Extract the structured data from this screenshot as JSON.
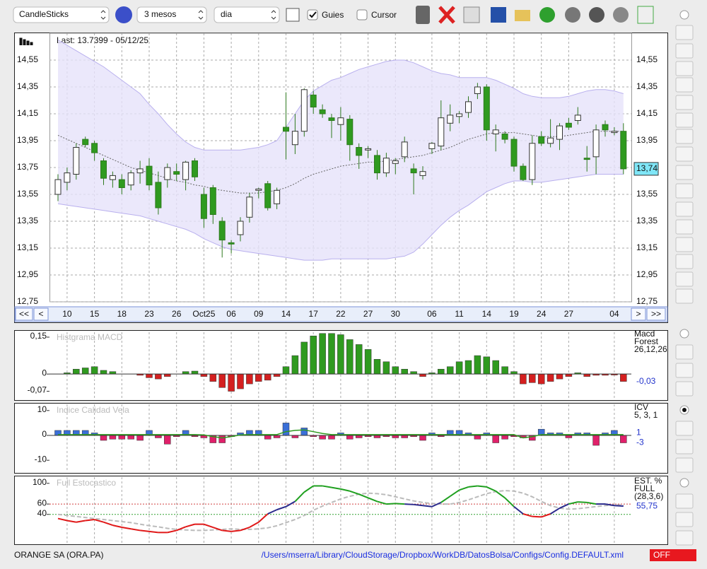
{
  "toolbar": {
    "chart_type": "CandleSticks",
    "period": "3 mesos",
    "interval": "dia",
    "guides": "Guies",
    "cursor": "Cursor"
  },
  "main_chart": {
    "type": "candlestick",
    "title": "Last: 13.7399 - 05/12/25",
    "categories": [
      null,
      "10",
      null,
      null,
      "15",
      null,
      null,
      "18",
      null,
      null,
      "23",
      null,
      null,
      "26",
      null,
      null,
      "Oct25",
      null,
      null,
      "06",
      null,
      null,
      "09",
      null,
      null,
      "14",
      null,
      null,
      "17",
      null,
      null,
      "22",
      null,
      null,
      "27",
      null,
      null,
      "30",
      null,
      null,
      null,
      "06",
      null,
      null,
      "11",
      null,
      null,
      "14",
      null,
      null,
      "19",
      null,
      null,
      "24",
      null,
      null,
      "27",
      null,
      null,
      null,
      null,
      "04",
      null
    ],
    "ohlc": [
      [
        13.55,
        13.7,
        13.5,
        13.66
      ],
      [
        13.64,
        13.75,
        13.58,
        13.71
      ],
      [
        13.7,
        13.93,
        13.66,
        13.9
      ],
      [
        13.96,
        13.98,
        13.9,
        13.92
      ],
      [
        13.93,
        13.95,
        13.8,
        13.86
      ],
      [
        13.8,
        13.82,
        13.62,
        13.67
      ],
      [
        13.66,
        13.72,
        13.6,
        13.69
      ],
      [
        13.66,
        13.7,
        13.55,
        13.6
      ],
      [
        13.62,
        13.73,
        13.58,
        13.71
      ],
      [
        13.71,
        13.8,
        13.63,
        13.74
      ],
      [
        13.76,
        13.82,
        13.58,
        13.62
      ],
      [
        13.64,
        13.72,
        13.4,
        13.45
      ],
      [
        13.66,
        13.78,
        13.6,
        13.75
      ],
      [
        13.72,
        13.78,
        13.65,
        13.7
      ],
      [
        13.66,
        13.8,
        13.58,
        13.79
      ],
      [
        13.8,
        13.82,
        13.65,
        13.68
      ],
      [
        13.55,
        13.6,
        13.3,
        13.37
      ],
      [
        13.6,
        13.62,
        13.33,
        13.4
      ],
      [
        13.35,
        13.38,
        13.08,
        13.21
      ],
      [
        13.19,
        13.21,
        13.11,
        13.18
      ],
      [
        13.25,
        13.38,
        13.2,
        13.35
      ],
      [
        13.38,
        13.56,
        13.34,
        13.53
      ],
      [
        13.58,
        13.6,
        13.52,
        13.59
      ],
      [
        13.63,
        13.65,
        13.43,
        13.45
      ],
      [
        13.48,
        13.6,
        13.44,
        13.58
      ],
      [
        14.05,
        14.31,
        13.81,
        14.02
      ],
      [
        13.92,
        14.15,
        13.85,
        14.02
      ],
      [
        14.02,
        14.34,
        13.98,
        14.33
      ],
      [
        14.29,
        14.32,
        14.15,
        14.2
      ],
      [
        14.18,
        14.22,
        14.12,
        14.15
      ],
      [
        14.12,
        14.15,
        13.97,
        14.1
      ],
      [
        14.07,
        14.2,
        13.95,
        14.12
      ],
      [
        14.11,
        14.14,
        13.8,
        13.92
      ],
      [
        13.9,
        13.93,
        13.74,
        13.84
      ],
      [
        13.88,
        13.91,
        13.82,
        13.89
      ],
      [
        13.84,
        13.88,
        13.66,
        13.71
      ],
      [
        13.71,
        13.86,
        13.68,
        13.82
      ],
      [
        13.78,
        13.82,
        13.7,
        13.8
      ],
      [
        13.83,
        13.98,
        13.79,
        13.94
      ],
      [
        13.74,
        13.78,
        13.55,
        13.71
      ],
      [
        13.69,
        13.76,
        13.66,
        13.72
      ],
      [
        13.89,
        13.94,
        13.85,
        13.93
      ],
      [
        13.91,
        14.25,
        13.88,
        14.12
      ],
      [
        14.08,
        14.22,
        14.02,
        14.14
      ],
      [
        14.13,
        14.17,
        14.08,
        14.15
      ],
      [
        14.16,
        14.28,
        14.12,
        14.24
      ],
      [
        14.3,
        14.38,
        14.26,
        14.35
      ],
      [
        14.35,
        14.37,
        13.95,
        14.03
      ],
      [
        14.0,
        14.07,
        13.87,
        14.03
      ],
      [
        14.0,
        14.02,
        13.93,
        13.96
      ],
      [
        13.96,
        13.98,
        13.72,
        13.76
      ],
      [
        13.76,
        13.78,
        13.65,
        13.66
      ],
      [
        13.66,
        13.99,
        13.62,
        13.93
      ],
      [
        13.98,
        14.02,
        13.91,
        13.93
      ],
      [
        13.93,
        14.11,
        13.9,
        13.97
      ],
      [
        13.96,
        14.08,
        13.88,
        14.06
      ],
      [
        14.08,
        14.12,
        14.03,
        14.05
      ],
      [
        14.1,
        14.2,
        14.07,
        14.14
      ],
      [
        13.82,
        13.91,
        13.72,
        13.81
      ],
      [
        13.83,
        14.07,
        13.7,
        14.03
      ],
      [
        14.07,
        14.1,
        13.98,
        14.03
      ],
      [
        14.01,
        14.05,
        13.99,
        14.02
      ],
      [
        14.02,
        14.08,
        13.7,
        13.74
      ]
    ],
    "upper_band": [
      14.7,
      14.66,
      14.62,
      14.58,
      14.54,
      14.5,
      14.45,
      14.4,
      14.35,
      14.3,
      14.22,
      14.15,
      14.07,
      14.0,
      13.94,
      13.9,
      13.88,
      13.88,
      13.88,
      13.88,
      13.88,
      13.89,
      13.9,
      13.92,
      13.95,
      14.05,
      14.15,
      14.25,
      14.32,
      14.36,
      14.4,
      14.42,
      14.45,
      14.48,
      14.5,
      14.52,
      14.54,
      14.55,
      14.55,
      14.53,
      14.5,
      14.47,
      14.45,
      14.44,
      14.42,
      14.42,
      14.42,
      14.42,
      14.4,
      14.37,
      14.34,
      14.3,
      14.28,
      14.27,
      14.27,
      14.27,
      14.28,
      14.3,
      14.32,
      14.33,
      14.33,
      14.32,
      14.3
    ],
    "lower_band": [
      13.48,
      13.47,
      13.46,
      13.45,
      13.44,
      13.43,
      13.42,
      13.41,
      13.4,
      13.39,
      13.37,
      13.35,
      13.33,
      13.31,
      13.29,
      13.26,
      13.22,
      13.19,
      13.16,
      13.14,
      13.13,
      13.12,
      13.11,
      13.1,
      13.09,
      13.08,
      13.07,
      13.06,
      13.06,
      13.06,
      13.07,
      13.07,
      13.07,
      13.07,
      13.07,
      13.07,
      13.07,
      13.08,
      13.09,
      13.12,
      13.18,
      13.25,
      13.32,
      13.38,
      13.43,
      13.47,
      13.52,
      13.57,
      13.6,
      13.63,
      13.65,
      13.65,
      13.64,
      13.64,
      13.65,
      13.66,
      13.67,
      13.68,
      13.69,
      13.7,
      13.7,
      13.7,
      13.7
    ],
    "moving_average": [
      13.99,
      13.96,
      13.93,
      13.9,
      13.87,
      13.84,
      13.81,
      13.78,
      13.75,
      13.73,
      13.71,
      13.69,
      13.67,
      13.65,
      13.64,
      13.62,
      13.61,
      13.59,
      13.58,
      13.57,
      13.56,
      13.56,
      13.56,
      13.57,
      13.58,
      13.6,
      13.63,
      13.67,
      13.7,
      13.72,
      13.74,
      13.76,
      13.77,
      13.78,
      13.79,
      13.79,
      13.8,
      13.81,
      13.82,
      13.83,
      13.84,
      13.86,
      13.88,
      13.9,
      13.93,
      13.96,
      13.98,
      14.0,
      14.01,
      14.01,
      14.01,
      14.0,
      13.99,
      13.98,
      13.98,
      13.98,
      13.99,
      14.0,
      14.01,
      14.02,
      14.02,
      14.02,
      14.02
    ],
    "ylim": [
      12.75,
      14.75
    ],
    "yticks": [
      {
        "value": 14.55,
        "label": "14,55"
      },
      {
        "value": 14.35,
        "label": "14,35"
      },
      {
        "value": 14.15,
        "label": "14,15"
      },
      {
        "value": 13.95,
        "label": "13,95"
      },
      {
        "value": 13.75,
        "label": "13,75"
      },
      {
        "value": 13.55,
        "label": "13,55"
      },
      {
        "value": 13.35,
        "label": "13,35"
      },
      {
        "value": 13.15,
        "label": "13,15"
      },
      {
        "value": 12.95,
        "label": "12,95"
      },
      {
        "value": 12.75,
        "label": "12,75"
      }
    ],
    "last_price": {
      "value": 13.74,
      "label": "13,74"
    },
    "nav": [
      "<<",
      "<",
      ">",
      ">>"
    ],
    "colors": {
      "up": "#ffffff",
      "down": "#2f9a1f",
      "band": "#b9b0ee",
      "band_fill": "#e6e2fa",
      "average": "#666666"
    }
  },
  "macd": {
    "type": "bar",
    "title": "Histgrama MACD",
    "legend": [
      "Macd",
      "Forest",
      "26,12,26"
    ],
    "current": {
      "value": -0.03,
      "label": "-0,03"
    },
    "values": [
      0,
      0.005,
      0.02,
      0.025,
      0.03,
      0.015,
      0.01,
      0,
      0,
      -0.005,
      -0.015,
      -0.02,
      -0.01,
      0,
      0.01,
      0.012,
      -0.01,
      -0.03,
      -0.055,
      -0.07,
      -0.06,
      -0.04,
      -0.03,
      -0.025,
      -0.01,
      0.03,
      0.075,
      0.13,
      0.155,
      0.165,
      0.165,
      0.16,
      0.14,
      0.12,
      0.1,
      0.06,
      0.05,
      0.03,
      0.02,
      0.01,
      -0.01,
      0.005,
      0.02,
      0.03,
      0.05,
      0.055,
      0.075,
      0.07,
      0.055,
      0.03,
      0.01,
      -0.04,
      -0.035,
      -0.04,
      -0.03,
      -0.02,
      -0.01,
      0.005,
      -0.01,
      -0.005,
      -0.005,
      -0.004,
      -0.03
    ],
    "ylim": [
      -0.1,
      0.17
    ],
    "yticks": [
      {
        "value": 0.15,
        "label": "0,15"
      },
      0,
      {
        "value": -0.07,
        "label": "-0,07"
      }
    ],
    "colors": {
      "up": "#2f9a1f",
      "down": "#d42020"
    }
  },
  "icv": {
    "type": "bar",
    "title": "Indice Calidad Vela",
    "legend": [
      "ICV",
      "5, 3, 1"
    ],
    "current": [
      1,
      -3
    ],
    "values": [
      2,
      2,
      2,
      2,
      1,
      -2,
      -1.5,
      -1.5,
      -1.5,
      -2,
      2,
      -1,
      -3.5,
      -0.5,
      2,
      -0.5,
      -1,
      -3,
      -3,
      -0.5,
      1,
      2,
      2,
      -1.5,
      -1,
      5,
      -1,
      3,
      -0.5,
      -1.5,
      -1.5,
      1,
      -1.5,
      -1,
      -0.5,
      -1,
      -0.5,
      -1,
      -1,
      -0.5,
      -2,
      1,
      -0.5,
      2,
      2,
      1,
      -1.5,
      1,
      -3,
      -1.5,
      -0.5,
      -1,
      -2,
      2.5,
      1,
      1,
      -1,
      1,
      1,
      -4,
      1,
      2,
      -3
    ],
    "line": [
      0.3,
      0.3,
      0.3,
      0.3,
      0.3,
      0.3,
      0.3,
      0.3,
      0.3,
      0.3,
      0.3,
      0.3,
      0.3,
      0.3,
      0.3,
      0.3,
      0.2,
      -0.5,
      -1,
      -0.5,
      0.2,
      0.3,
      0.3,
      0.3,
      0.3,
      1.5,
      2,
      2.2,
      1.5,
      0.8,
      0.3,
      0.3,
      0.3,
      0.3,
      0.3,
      0.3,
      0.3,
      0.3,
      0.3,
      0.3,
      0.3,
      0.3,
      0.3,
      0.3,
      0.3,
      0.3,
      0.3,
      0.3,
      0.3,
      0.3,
      0.3,
      -1,
      -0.5,
      0.3,
      0.3,
      0.3,
      0.3,
      0.3,
      0.3,
      0.3,
      0.3,
      0.3,
      0.3
    ],
    "ylim": [
      -14.5,
      12.5
    ],
    "yticks": [
      10,
      0,
      -10
    ],
    "colors": {
      "up": "#3a6fd8",
      "down": "#e0206a",
      "line": "#2f9a1f"
    }
  },
  "stochastic": {
    "type": "line",
    "title": "Full Estocastico",
    "legend": [
      "EST. %",
      "FULL",
      "(28,3,6)"
    ],
    "current": {
      "value": 55.75,
      "label": "55,75"
    },
    "k": [
      32,
      28,
      25,
      28,
      30,
      25,
      19,
      15,
      12,
      9,
      7,
      5,
      5,
      9,
      16,
      21,
      21,
      15,
      9,
      7,
      9,
      15,
      25,
      41,
      49,
      55,
      65,
      83,
      95,
      95,
      92,
      89,
      85,
      79,
      72,
      65,
      60,
      61,
      60,
      59,
      57,
      55,
      63,
      75,
      87,
      93,
      95,
      93,
      85,
      72,
      55,
      41,
      36,
      35,
      41,
      52,
      60,
      64,
      63,
      60,
      60,
      57,
      56
    ],
    "d": [
      40,
      38,
      36,
      34,
      32,
      30,
      28,
      26,
      24,
      21,
      18,
      16,
      13,
      11,
      10,
      9,
      9,
      10,
      11,
      12,
      11,
      11,
      12,
      14,
      18,
      24,
      30,
      38,
      48,
      56,
      63,
      70,
      75,
      79,
      81,
      80,
      78,
      74,
      70,
      66,
      63,
      61,
      60,
      60,
      63,
      68,
      74,
      80,
      84,
      86,
      85,
      81,
      74,
      65,
      57,
      52,
      50,
      51,
      53,
      55,
      57,
      58,
      58
    ],
    "ylim": [
      -15,
      112
    ],
    "yticks": [
      100,
      60,
      40
    ],
    "colors": {
      "high": "#1fa01f",
      "mid": "#2a2a8c",
      "low": "#e01818",
      "signal": "#bbbbbb",
      "upper_ref": "#d04040",
      "lower_ref": "#30a030"
    }
  },
  "status": {
    "symbol": "ORANGE SA (ORA.PA)",
    "path": "/Users/mserra/Library/CloudStorage/Dropbox/WorkDB/DatosBolsa/Configs/Config.DEFAULT.xml",
    "state": "OFF"
  }
}
